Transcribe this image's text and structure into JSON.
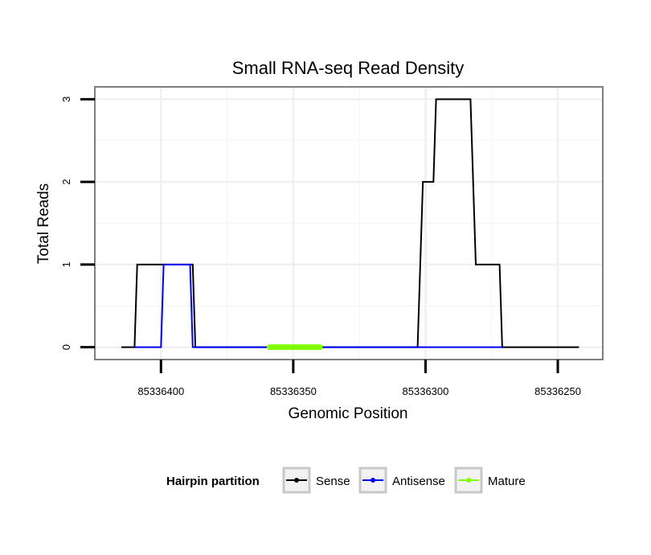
{
  "chart_data": {
    "type": "line",
    "title": "Small RNA-seq Read Density",
    "xlabel": "Genomic Position",
    "ylabel": "Total Reads",
    "x_reversed": true,
    "xlim": [
      85336425,
      85336233
    ],
    "ylim": [
      -0.15,
      3.15
    ],
    "x_ticks": [
      85336400,
      85336350,
      85336300,
      85336250
    ],
    "x_tick_labels": [
      "85336400",
      "85336350",
      "85336300",
      "85336250"
    ],
    "y_ticks": [
      0,
      1,
      2,
      3
    ],
    "y_tick_labels": [
      "0",
      "1",
      "2",
      "3"
    ],
    "grid": true,
    "legend": {
      "title": "Hairpin partition",
      "position": "bottom",
      "entries": [
        "Sense",
        "Antisense",
        "Mature"
      ]
    },
    "series": [
      {
        "name": "Sense",
        "color": "#000000",
        "x": [
          85336415,
          85336410,
          85336409,
          85336388,
          85336387,
          85336303,
          85336301,
          85336297,
          85336296,
          85336283,
          85336281,
          85336272,
          85336271,
          85336242
        ],
        "values": [
          0,
          0,
          1,
          1,
          0,
          0,
          2,
          2,
          3,
          3,
          1,
          1,
          0,
          0
        ]
      },
      {
        "name": "Antisense",
        "color": "#0000ff",
        "x": [
          85336410,
          85336400,
          85336399,
          85336389,
          85336388,
          85336303,
          85336271
        ],
        "values": [
          0,
          0,
          1,
          1,
          0,
          0,
          0
        ]
      },
      {
        "name": "Mature",
        "color": "#7fff00",
        "x": [
          85336359,
          85336340
        ],
        "values": [
          0,
          0
        ]
      }
    ]
  }
}
